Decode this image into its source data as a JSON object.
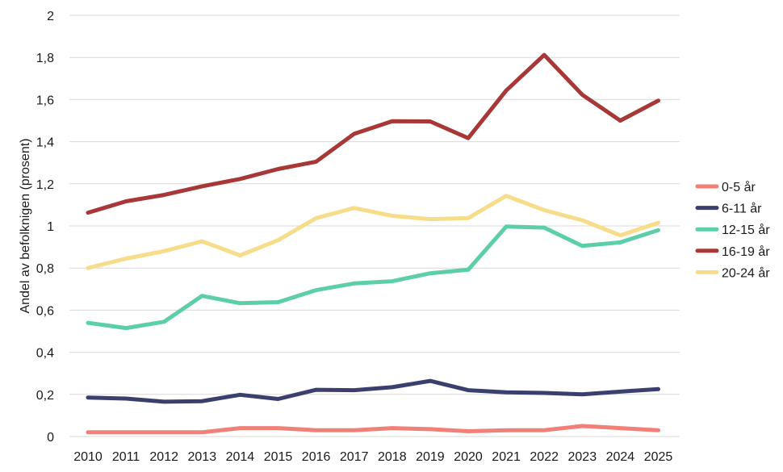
{
  "chart_data": {
    "type": "line",
    "title": "",
    "xlabel": "",
    "ylabel": "Andel av befolknigen (prosent)",
    "ylim": [
      0,
      2
    ],
    "y_ticks": [
      "0",
      "0,2",
      "0,4",
      "0,6",
      "0,8",
      "1",
      "1,2",
      "1,4",
      "1,6",
      "1,8",
      "2"
    ],
    "y_tick_values": [
      0,
      0.2,
      0.4,
      0.6,
      0.8,
      1.0,
      1.2,
      1.4,
      1.6,
      1.8,
      2.0
    ],
    "categories": [
      "2010",
      "2011",
      "2012",
      "2013",
      "2014",
      "2015",
      "2016",
      "2017",
      "2018",
      "2019",
      "2020",
      "2021",
      "2022",
      "2023",
      "2024",
      "2025"
    ],
    "grid": true,
    "legend_position": "right",
    "series": [
      {
        "name": "0-5 år",
        "color": "#f08078",
        "values": [
          0.02,
          0.02,
          0.02,
          0.02,
          0.04,
          0.04,
          0.03,
          0.03,
          0.04,
          0.035,
          0.025,
          0.03,
          0.03,
          0.05,
          0.04,
          0.03
        ]
      },
      {
        "name": "6-11 år",
        "color": "#3b3f6e",
        "values": [
          0.185,
          0.18,
          0.165,
          0.168,
          0.198,
          0.178,
          0.222,
          0.22,
          0.234,
          0.264,
          0.22,
          0.21,
          0.207,
          0.2,
          0.213,
          0.225
        ]
      },
      {
        "name": "12-15 år",
        "color": "#5ccfaa",
        "values": [
          0.54,
          0.515,
          0.545,
          0.668,
          0.633,
          0.638,
          0.695,
          0.727,
          0.737,
          0.775,
          0.792,
          0.997,
          0.992,
          0.905,
          0.922,
          0.98
        ]
      },
      {
        "name": "16-19 år",
        "color": "#a83737",
        "values": [
          1.063,
          1.117,
          1.147,
          1.188,
          1.223,
          1.27,
          1.305,
          1.437,
          1.497,
          1.496,
          1.417,
          1.643,
          1.812,
          1.623,
          1.5,
          1.595
        ]
      },
      {
        "name": "20-24 år",
        "color": "#f7dd8a",
        "values": [
          0.8,
          0.845,
          0.88,
          0.927,
          0.86,
          0.932,
          1.037,
          1.085,
          1.048,
          1.032,
          1.037,
          1.143,
          1.075,
          1.027,
          0.955,
          1.015
        ]
      }
    ]
  }
}
